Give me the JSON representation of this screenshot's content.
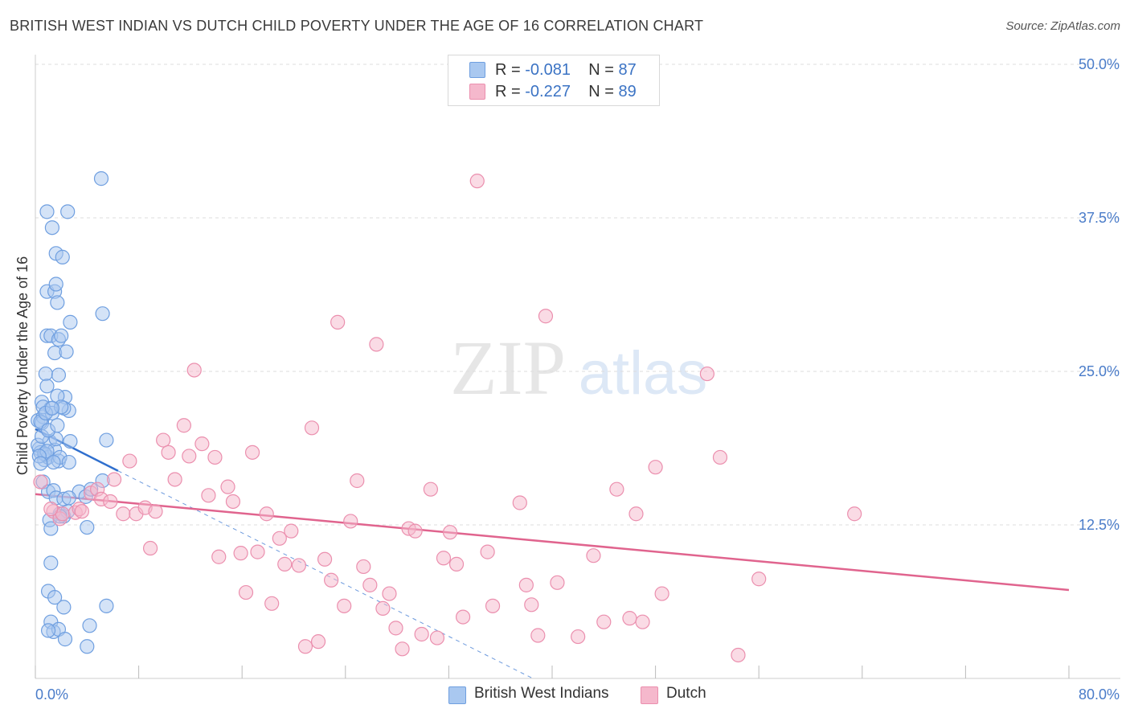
{
  "title": "BRITISH WEST INDIAN VS DUTCH CHILD POVERTY UNDER THE AGE OF 16 CORRELATION CHART",
  "source": "Source: ZipAtlas.com",
  "watermark": {
    "zip": "ZIP",
    "atlas": "atlas"
  },
  "legend": {
    "r_label": "R =",
    "n_label": "N =",
    "rows": [
      {
        "r": "-0.081",
        "n": "87"
      },
      {
        "r": "-0.227",
        "n": "89"
      }
    ]
  },
  "colors": {
    "blue_fill": "#a9c8f0",
    "blue_stroke": "#6f9fe0",
    "blue_line": "#2f6fce",
    "pink_fill": "#f5b8cc",
    "pink_stroke": "#eb8fae",
    "pink_line": "#e0648e",
    "tick_text": "#4a7cc9",
    "grid": "#dddddd"
  },
  "chart_data": {
    "type": "scatter",
    "title": "BRITISH WEST INDIAN VS DUTCH CHILD POVERTY UNDER THE AGE OF 16 CORRELATION CHART",
    "xlabel": "",
    "ylabel": "Child Poverty Under the Age of 16",
    "xlim": [
      0,
      80
    ],
    "ylim": [
      0,
      50
    ],
    "x_tick_labels": [
      "0.0%",
      "80.0%"
    ],
    "y_ticks": [
      12.5,
      25.0,
      37.5,
      50.0
    ],
    "y_tick_labels": [
      "12.5%",
      "25.0%",
      "37.5%",
      "50.0%"
    ],
    "grid": true,
    "legend_position": "top-center",
    "series": [
      {
        "name": "British West Indians",
        "r": -0.081,
        "n": 87,
        "trend": {
          "x": [
            0,
            6.4
          ],
          "y": [
            20.3,
            16.9
          ],
          "dashed_to": [
            38.5,
            0
          ]
        },
        "points": [
          [
            0.2,
            21
          ],
          [
            0.5,
            22.5
          ],
          [
            0.6,
            21.3
          ],
          [
            0.3,
            18.7
          ],
          [
            0.4,
            18.4
          ],
          [
            0.7,
            17.8
          ],
          [
            0.2,
            19.0
          ],
          [
            0.5,
            20.8
          ],
          [
            0.8,
            18.2
          ],
          [
            1.0,
            18.0
          ],
          [
            1.1,
            19.3
          ],
          [
            1.2,
            22.0
          ],
          [
            1.3,
            21.6
          ],
          [
            1.5,
            18.6
          ],
          [
            1.6,
            19.5
          ],
          [
            1.8,
            17.7
          ],
          [
            0.6,
            16.0
          ],
          [
            1.0,
            15.2
          ],
          [
            1.4,
            15.3
          ],
          [
            1.6,
            14.7
          ],
          [
            1.9,
            13.4
          ],
          [
            2.2,
            13.2
          ],
          [
            2.5,
            13.6
          ],
          [
            1.1,
            12.9
          ],
          [
            1.2,
            12.2
          ],
          [
            3.4,
            15.2
          ],
          [
            3.9,
            14.8
          ],
          [
            4.0,
            12.3
          ],
          [
            4.3,
            15.4
          ],
          [
            2.2,
            14.6
          ],
          [
            5.2,
            16.1
          ],
          [
            5.5,
            19.4
          ],
          [
            2.7,
            19.3
          ],
          [
            2.3,
            22.9
          ],
          [
            2.6,
            21.8
          ],
          [
            0.8,
            24.8
          ],
          [
            1.5,
            26.5
          ],
          [
            1.8,
            24.7
          ],
          [
            2.4,
            26.6
          ],
          [
            0.9,
            27.9
          ],
          [
            1.2,
            27.9
          ],
          [
            1.8,
            27.6
          ],
          [
            2.0,
            27.9
          ],
          [
            2.7,
            29.0
          ],
          [
            0.9,
            31.5
          ],
          [
            1.5,
            31.5
          ],
          [
            1.7,
            30.6
          ],
          [
            1.6,
            32.1
          ],
          [
            1.6,
            34.6
          ],
          [
            2.1,
            34.3
          ],
          [
            1.3,
            36.7
          ],
          [
            0.9,
            38.0
          ],
          [
            2.5,
            38.0
          ],
          [
            5.1,
            40.7
          ],
          [
            5.2,
            29.7
          ],
          [
            0.9,
            23.8
          ],
          [
            1.7,
            23.0
          ],
          [
            2.2,
            22.0
          ],
          [
            0.6,
            22.1
          ],
          [
            0.4,
            20.9
          ],
          [
            0.5,
            19.7
          ],
          [
            0.7,
            18.3
          ],
          [
            1.9,
            18.0
          ],
          [
            1.2,
            9.4
          ],
          [
            1.0,
            7.1
          ],
          [
            1.5,
            6.6
          ],
          [
            2.2,
            5.8
          ],
          [
            1.2,
            4.6
          ],
          [
            1.4,
            3.8
          ],
          [
            1.8,
            4.0
          ],
          [
            1.0,
            3.9
          ],
          [
            2.3,
            3.2
          ],
          [
            4.2,
            4.3
          ],
          [
            4.0,
            2.6
          ],
          [
            5.5,
            5.9
          ],
          [
            2.6,
            14.7
          ],
          [
            1.9,
            13.2
          ],
          [
            0.9,
            18.5
          ],
          [
            1.4,
            17.6
          ],
          [
            1.0,
            20.2
          ],
          [
            0.3,
            18.1
          ],
          [
            1.7,
            20.6
          ],
          [
            0.4,
            17.5
          ],
          [
            2.0,
            22.1
          ],
          [
            2.6,
            17.6
          ],
          [
            0.8,
            21.6
          ],
          [
            1.3,
            22.0
          ]
        ]
      },
      {
        "name": "Dutch",
        "r": -0.227,
        "n": 89,
        "trend": {
          "x": [
            0,
            80
          ],
          "y": [
            15.0,
            7.2
          ]
        },
        "points": [
          [
            0.4,
            16.0
          ],
          [
            1.4,
            13.6
          ],
          [
            1.9,
            13.0
          ],
          [
            2.1,
            13.4
          ],
          [
            3.1,
            13.5
          ],
          [
            3.4,
            13.8
          ],
          [
            4.3,
            15.1
          ],
          [
            4.8,
            15.4
          ],
          [
            5.1,
            14.6
          ],
          [
            5.8,
            14.4
          ],
          [
            6.1,
            16.2
          ],
          [
            6.8,
            13.4
          ],
          [
            7.3,
            17.7
          ],
          [
            7.8,
            13.4
          ],
          [
            8.5,
            13.9
          ],
          [
            8.9,
            10.6
          ],
          [
            9.3,
            13.6
          ],
          [
            9.9,
            19.4
          ],
          [
            10.3,
            18.4
          ],
          [
            10.8,
            16.2
          ],
          [
            11.5,
            20.6
          ],
          [
            11.9,
            18.1
          ],
          [
            12.3,
            25.1
          ],
          [
            12.9,
            19.1
          ],
          [
            13.4,
            14.9
          ],
          [
            13.9,
            18.0
          ],
          [
            14.2,
            9.9
          ],
          [
            14.9,
            15.6
          ],
          [
            15.3,
            14.4
          ],
          [
            15.9,
            10.2
          ],
          [
            16.3,
            7.0
          ],
          [
            16.8,
            18.4
          ],
          [
            17.2,
            10.3
          ],
          [
            17.9,
            13.4
          ],
          [
            18.3,
            6.1
          ],
          [
            18.9,
            11.4
          ],
          [
            19.3,
            9.3
          ],
          [
            19.8,
            12.0
          ],
          [
            20.4,
            9.2
          ],
          [
            20.9,
            2.6
          ],
          [
            21.4,
            20.4
          ],
          [
            21.9,
            3.0
          ],
          [
            22.4,
            9.7
          ],
          [
            22.9,
            8.0
          ],
          [
            23.4,
            29.0
          ],
          [
            23.9,
            5.9
          ],
          [
            24.4,
            12.8
          ],
          [
            24.9,
            16.1
          ],
          [
            25.4,
            9.1
          ],
          [
            25.9,
            7.6
          ],
          [
            26.4,
            27.2
          ],
          [
            26.9,
            5.7
          ],
          [
            27.4,
            6.9
          ],
          [
            27.9,
            4.1
          ],
          [
            28.4,
            2.4
          ],
          [
            28.9,
            12.2
          ],
          [
            29.4,
            12.0
          ],
          [
            29.9,
            3.6
          ],
          [
            30.6,
            15.4
          ],
          [
            31.1,
            3.3
          ],
          [
            31.6,
            9.8
          ],
          [
            32.1,
            11.9
          ],
          [
            32.6,
            9.3
          ],
          [
            33.1,
            5.0
          ],
          [
            34.2,
            40.5
          ],
          [
            35.0,
            10.3
          ],
          [
            35.4,
            5.9
          ],
          [
            37.5,
            14.3
          ],
          [
            38.0,
            7.6
          ],
          [
            38.4,
            6.0
          ],
          [
            38.9,
            3.5
          ],
          [
            39.5,
            29.5
          ],
          [
            40.4,
            7.8
          ],
          [
            42.0,
            3.4
          ],
          [
            43.2,
            10.0
          ],
          [
            44.0,
            4.6
          ],
          [
            45.0,
            15.4
          ],
          [
            46.0,
            4.9
          ],
          [
            46.5,
            13.4
          ],
          [
            47.0,
            4.6
          ],
          [
            48.0,
            17.2
          ],
          [
            48.5,
            6.9
          ],
          [
            52.0,
            24.8
          ],
          [
            53.0,
            18.0
          ],
          [
            54.4,
            1.9
          ],
          [
            56.0,
            8.1
          ],
          [
            63.4,
            13.4
          ],
          [
            1.2,
            13.8
          ],
          [
            3.6,
            13.6
          ]
        ]
      }
    ]
  },
  "bottom_legend": [
    {
      "label": "British West Indians"
    },
    {
      "label": "Dutch"
    }
  ]
}
